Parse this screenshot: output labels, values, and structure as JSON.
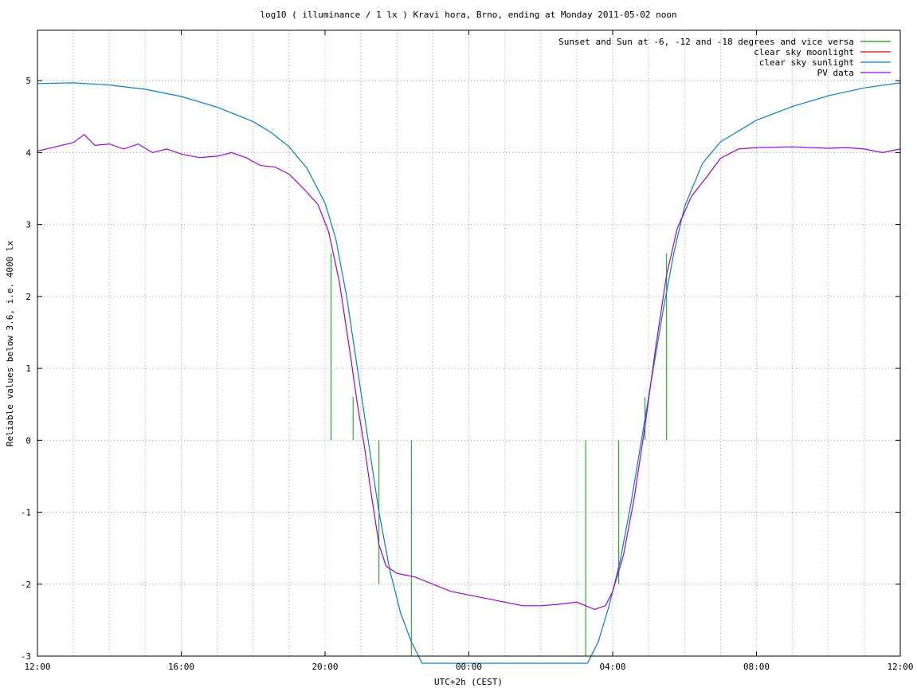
{
  "chart_data": {
    "type": "line",
    "title": "log10 ( illuminance / 1 lx ) Kravi hora, Brno, ending at Monday 2011-05-02 noon",
    "xlabel": "UTC+2h (CEST)",
    "ylabel": "Reliable values below 3.6, i.e. 4000 lx",
    "xlim": [
      12,
      36
    ],
    "ylim": [
      -3,
      5.7
    ],
    "x_ticks": [
      {
        "v": 12,
        "label": "12:00"
      },
      {
        "v": 16,
        "label": "16:00"
      },
      {
        "v": 20,
        "label": "20:00"
      },
      {
        "v": 24,
        "label": "00:00"
      },
      {
        "v": 28,
        "label": "04:00"
      },
      {
        "v": 32,
        "label": "08:00"
      },
      {
        "v": 36,
        "label": "12:00"
      }
    ],
    "y_ticks": [
      {
        "v": -3,
        "label": "-3"
      },
      {
        "v": -2,
        "label": "-2"
      },
      {
        "v": -1,
        "label": "-1"
      },
      {
        "v": 0,
        "label": "0"
      },
      {
        "v": 1,
        "label": "1"
      },
      {
        "v": 2,
        "label": "2"
      },
      {
        "v": 3,
        "label": "3"
      },
      {
        "v": 4,
        "label": "4"
      },
      {
        "v": 5,
        "label": "5"
      }
    ],
    "grid": true,
    "legend_position": "top-right",
    "series": [
      {
        "name": "Sunset and Sun at -6, -12 and -18 degrees and vice versa",
        "color": "#00a000",
        "kind": "impulses",
        "points": [
          {
            "x": 20.17,
            "y": 2.6
          },
          {
            "x": 20.78,
            "y": 0.6
          },
          {
            "x": 21.5,
            "y": -2.0
          },
          {
            "x": 22.4,
            "y": -3.0
          },
          {
            "x": 27.25,
            "y": -3.0
          },
          {
            "x": 28.17,
            "y": -2.0
          },
          {
            "x": 28.9,
            "y": 0.6
          },
          {
            "x": 29.5,
            "y": 2.6
          }
        ]
      },
      {
        "name": "clear sky moonlight",
        "color": "#e00000",
        "kind": "line",
        "points": []
      },
      {
        "name": "clear sky sunlight",
        "color": "#0080d0",
        "kind": "line",
        "points": [
          {
            "x": 12.0,
            "y": 4.96
          },
          {
            "x": 13.0,
            "y": 4.97
          },
          {
            "x": 14.0,
            "y": 4.94
          },
          {
            "x": 15.0,
            "y": 4.88
          },
          {
            "x": 16.0,
            "y": 4.78
          },
          {
            "x": 17.0,
            "y": 4.63
          },
          {
            "x": 18.0,
            "y": 4.43
          },
          {
            "x": 18.5,
            "y": 4.28
          },
          {
            "x": 19.0,
            "y": 4.08
          },
          {
            "x": 19.5,
            "y": 3.78
          },
          {
            "x": 20.0,
            "y": 3.3
          },
          {
            "x": 20.3,
            "y": 2.8
          },
          {
            "x": 20.6,
            "y": 2.0
          },
          {
            "x": 20.9,
            "y": 1.0
          },
          {
            "x": 21.2,
            "y": 0.0
          },
          {
            "x": 21.5,
            "y": -1.0
          },
          {
            "x": 21.8,
            "y": -1.8
          },
          {
            "x": 22.1,
            "y": -2.4
          },
          {
            "x": 22.4,
            "y": -2.8
          },
          {
            "x": 22.7,
            "y": -3.1
          },
          {
            "x": 27.3,
            "y": -3.1
          },
          {
            "x": 27.6,
            "y": -2.8
          },
          {
            "x": 27.9,
            "y": -2.3
          },
          {
            "x": 28.2,
            "y": -1.7
          },
          {
            "x": 28.5,
            "y": -0.9
          },
          {
            "x": 28.8,
            "y": 0.0
          },
          {
            "x": 29.1,
            "y": 0.9
          },
          {
            "x": 29.4,
            "y": 1.8
          },
          {
            "x": 29.7,
            "y": 2.6
          },
          {
            "x": 30.0,
            "y": 3.25
          },
          {
            "x": 30.5,
            "y": 3.85
          },
          {
            "x": 31.0,
            "y": 4.15
          },
          {
            "x": 32.0,
            "y": 4.45
          },
          {
            "x": 33.0,
            "y": 4.64
          },
          {
            "x": 34.0,
            "y": 4.79
          },
          {
            "x": 35.0,
            "y": 4.9
          },
          {
            "x": 36.0,
            "y": 4.97
          }
        ]
      },
      {
        "name": "PV data",
        "color": "#a000e0",
        "kind": "line",
        "points": [
          {
            "x": 12.0,
            "y": 4.02
          },
          {
            "x": 12.5,
            "y": 4.08
          },
          {
            "x": 13.0,
            "y": 4.14
          },
          {
            "x": 13.3,
            "y": 4.25
          },
          {
            "x": 13.6,
            "y": 4.1
          },
          {
            "x": 14.0,
            "y": 4.12
          },
          {
            "x": 14.4,
            "y": 4.05
          },
          {
            "x": 14.8,
            "y": 4.12
          },
          {
            "x": 15.2,
            "y": 4.0
          },
          {
            "x": 15.6,
            "y": 4.05
          },
          {
            "x": 16.0,
            "y": 3.98
          },
          {
            "x": 16.5,
            "y": 3.93
          },
          {
            "x": 17.0,
            "y": 3.95
          },
          {
            "x": 17.4,
            "y": 4.0
          },
          {
            "x": 17.8,
            "y": 3.93
          },
          {
            "x": 18.2,
            "y": 3.82
          },
          {
            "x": 18.6,
            "y": 3.8
          },
          {
            "x": 19.0,
            "y": 3.7
          },
          {
            "x": 19.4,
            "y": 3.5
          },
          {
            "x": 19.8,
            "y": 3.28
          },
          {
            "x": 20.1,
            "y": 2.9
          },
          {
            "x": 20.4,
            "y": 2.2
          },
          {
            "x": 20.7,
            "y": 1.2
          },
          {
            "x": 20.9,
            "y": 0.5
          },
          {
            "x": 21.1,
            "y": -0.1
          },
          {
            "x": 21.3,
            "y": -0.8
          },
          {
            "x": 21.5,
            "y": -1.45
          },
          {
            "x": 21.7,
            "y": -1.75
          },
          {
            "x": 22.0,
            "y": -1.85
          },
          {
            "x": 22.5,
            "y": -1.9
          },
          {
            "x": 23.0,
            "y": -2.0
          },
          {
            "x": 23.5,
            "y": -2.1
          },
          {
            "x": 24.0,
            "y": -2.15
          },
          {
            "x": 24.5,
            "y": -2.2
          },
          {
            "x": 25.0,
            "y": -2.25
          },
          {
            "x": 25.5,
            "y": -2.3
          },
          {
            "x": 26.0,
            "y": -2.3
          },
          {
            "x": 26.5,
            "y": -2.28
          },
          {
            "x": 27.0,
            "y": -2.25
          },
          {
            "x": 27.5,
            "y": -2.35
          },
          {
            "x": 27.8,
            "y": -2.3
          },
          {
            "x": 28.0,
            "y": -2.1
          },
          {
            "x": 28.3,
            "y": -1.6
          },
          {
            "x": 28.6,
            "y": -0.8
          },
          {
            "x": 28.9,
            "y": 0.2
          },
          {
            "x": 29.2,
            "y": 1.3
          },
          {
            "x": 29.5,
            "y": 2.3
          },
          {
            "x": 29.8,
            "y": 2.95
          },
          {
            "x": 30.2,
            "y": 3.4
          },
          {
            "x": 30.6,
            "y": 3.65
          },
          {
            "x": 31.0,
            "y": 3.92
          },
          {
            "x": 31.5,
            "y": 4.05
          },
          {
            "x": 32.0,
            "y": 4.07
          },
          {
            "x": 33.0,
            "y": 4.08
          },
          {
            "x": 34.0,
            "y": 4.06
          },
          {
            "x": 34.5,
            "y": 4.07
          },
          {
            "x": 35.0,
            "y": 4.05
          },
          {
            "x": 35.5,
            "y": 4.0
          },
          {
            "x": 36.0,
            "y": 4.05
          }
        ]
      }
    ]
  }
}
